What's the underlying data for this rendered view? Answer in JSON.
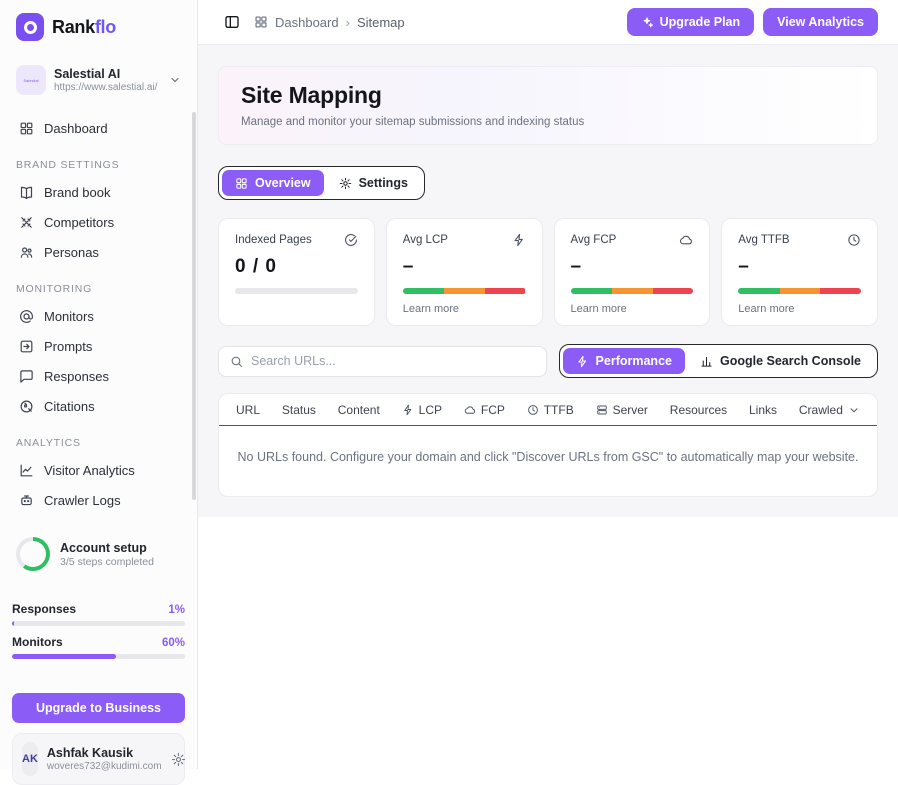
{
  "brand": {
    "name_primary": "Rank",
    "name_secondary": "flo"
  },
  "workspace": {
    "avatar_text": "Salestial",
    "name": "Salestial AI",
    "url": "https://www.salestial.ai/"
  },
  "sidebar": {
    "sections": [
      {
        "heading": "",
        "items": [
          {
            "label": "Dashboard",
            "icon": "grid"
          }
        ]
      },
      {
        "heading": "BRAND SETTINGS",
        "items": [
          {
            "label": "Brand book",
            "icon": "book"
          },
          {
            "label": "Competitors",
            "icon": "swords"
          },
          {
            "label": "Personas",
            "icon": "people"
          }
        ]
      },
      {
        "heading": "MONITORING",
        "items": [
          {
            "label": "Monitors",
            "icon": "at"
          },
          {
            "label": "Prompts",
            "icon": "prompt"
          },
          {
            "label": "Responses",
            "icon": "chat"
          },
          {
            "label": "Citations",
            "icon": "citation"
          }
        ]
      },
      {
        "heading": "ANALYTICS",
        "items": [
          {
            "label": "Visitor Analytics",
            "icon": "chart-line"
          },
          {
            "label": "Crawler Logs",
            "icon": "robot"
          }
        ]
      }
    ],
    "account_setup": {
      "title": "Account setup",
      "subtitle": "3/5 steps completed",
      "progress_percent": 60
    },
    "usage": [
      {
        "label": "Responses",
        "percent_label": "1%",
        "percent": 1
      },
      {
        "label": "Monitors",
        "percent_label": "60%",
        "percent": 60
      }
    ],
    "upgrade_button": "Upgrade to Business",
    "user": {
      "initials": "AK",
      "name": "Ashfak Kausik",
      "email": "woveres732@kudimi.com"
    }
  },
  "topbar": {
    "breadcrumb": {
      "root": "Dashboard",
      "separator": "›",
      "current": "Sitemap"
    },
    "buttons": [
      {
        "label": "Upgrade Plan",
        "icon": "sparkles"
      },
      {
        "label": "View Analytics",
        "icon": ""
      }
    ]
  },
  "page": {
    "title": "Site Mapping",
    "subtitle": "Manage and monitor your sitemap submissions and indexing status"
  },
  "tabs": [
    {
      "label": "Overview",
      "icon": "grid",
      "active": true
    },
    {
      "label": "Settings",
      "icon": "gear",
      "active": false
    }
  ],
  "stat_cards": [
    {
      "label": "Indexed Pages",
      "icon": "check-circle",
      "value": "0 / 0",
      "bar": "gray",
      "link": ""
    },
    {
      "label": "Avg LCP",
      "icon": "lightning",
      "value": "–",
      "bar": "tricolor",
      "link": "Learn more"
    },
    {
      "label": "Avg FCP",
      "icon": "cloud",
      "value": "–",
      "bar": "tricolor",
      "link": "Learn more"
    },
    {
      "label": "Avg TTFB",
      "icon": "clock",
      "value": "–",
      "bar": "tricolor",
      "link": "Learn more"
    }
  ],
  "search": {
    "placeholder": "Search URLs..."
  },
  "view_toggle": [
    {
      "label": "Performance",
      "icon": "lightning",
      "active": true
    },
    {
      "label": "Google Search Console",
      "icon": "bar-chart",
      "active": false
    }
  ],
  "table": {
    "columns": [
      {
        "label": "URL",
        "icon": ""
      },
      {
        "label": "Status",
        "icon": ""
      },
      {
        "label": "Content",
        "icon": ""
      },
      {
        "label": "LCP",
        "icon": "lightning"
      },
      {
        "label": "FCP",
        "icon": "cloud"
      },
      {
        "label": "TTFB",
        "icon": "clock"
      },
      {
        "label": "Server",
        "icon": "server"
      },
      {
        "label": "Resources",
        "icon": ""
      },
      {
        "label": "Links",
        "icon": ""
      },
      {
        "label": "Crawled",
        "icon": "",
        "chevron": true
      }
    ],
    "empty_message": "No URLs found. Configure your domain and click \"Discover URLs from GSC\" to automatically map your website."
  },
  "colors": {
    "accent": "#8b5cf6",
    "green": "#2fbf63",
    "orange": "#f59431",
    "red": "#ef4450"
  }
}
